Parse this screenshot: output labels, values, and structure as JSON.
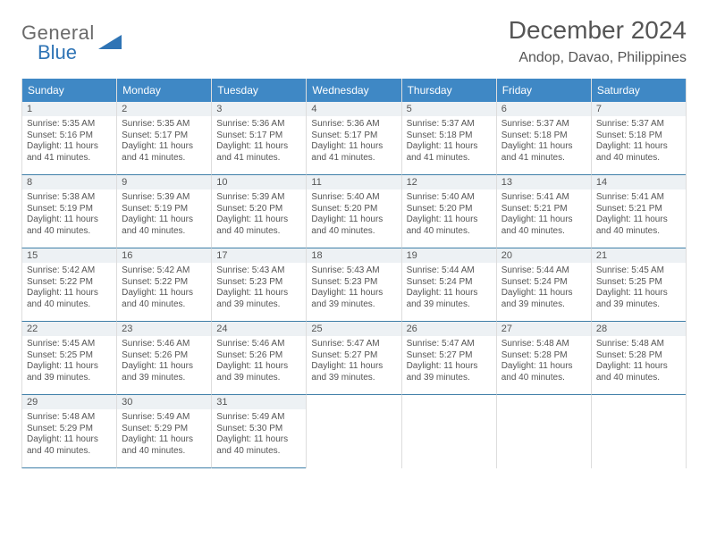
{
  "logo": {
    "general": "General",
    "blue": "Blue"
  },
  "header": {
    "title": "December 2024",
    "location": "Andop, Davao, Philippines"
  },
  "style": {
    "header_bg": "#3f88c5",
    "header_fg": "#ffffff",
    "daynum_bg": "#edf1f4",
    "row_divider": "#3f7fa8",
    "cell_border": "#dddddd",
    "logo_gray": "#6a6a6a",
    "logo_blue": "#2f74b5",
    "text_color": "#555555"
  },
  "weekdays": [
    "Sunday",
    "Monday",
    "Tuesday",
    "Wednesday",
    "Thursday",
    "Friday",
    "Saturday"
  ],
  "days": [
    {
      "n": "1",
      "sr": "Sunrise: 5:35 AM",
      "ss": "Sunset: 5:16 PM",
      "d1": "Daylight: 11 hours",
      "d2": "and 41 minutes."
    },
    {
      "n": "2",
      "sr": "Sunrise: 5:35 AM",
      "ss": "Sunset: 5:17 PM",
      "d1": "Daylight: 11 hours",
      "d2": "and 41 minutes."
    },
    {
      "n": "3",
      "sr": "Sunrise: 5:36 AM",
      "ss": "Sunset: 5:17 PM",
      "d1": "Daylight: 11 hours",
      "d2": "and 41 minutes."
    },
    {
      "n": "4",
      "sr": "Sunrise: 5:36 AM",
      "ss": "Sunset: 5:17 PM",
      "d1": "Daylight: 11 hours",
      "d2": "and 41 minutes."
    },
    {
      "n": "5",
      "sr": "Sunrise: 5:37 AM",
      "ss": "Sunset: 5:18 PM",
      "d1": "Daylight: 11 hours",
      "d2": "and 41 minutes."
    },
    {
      "n": "6",
      "sr": "Sunrise: 5:37 AM",
      "ss": "Sunset: 5:18 PM",
      "d1": "Daylight: 11 hours",
      "d2": "and 41 minutes."
    },
    {
      "n": "7",
      "sr": "Sunrise: 5:37 AM",
      "ss": "Sunset: 5:18 PM",
      "d1": "Daylight: 11 hours",
      "d2": "and 40 minutes."
    },
    {
      "n": "8",
      "sr": "Sunrise: 5:38 AM",
      "ss": "Sunset: 5:19 PM",
      "d1": "Daylight: 11 hours",
      "d2": "and 40 minutes."
    },
    {
      "n": "9",
      "sr": "Sunrise: 5:39 AM",
      "ss": "Sunset: 5:19 PM",
      "d1": "Daylight: 11 hours",
      "d2": "and 40 minutes."
    },
    {
      "n": "10",
      "sr": "Sunrise: 5:39 AM",
      "ss": "Sunset: 5:20 PM",
      "d1": "Daylight: 11 hours",
      "d2": "and 40 minutes."
    },
    {
      "n": "11",
      "sr": "Sunrise: 5:40 AM",
      "ss": "Sunset: 5:20 PM",
      "d1": "Daylight: 11 hours",
      "d2": "and 40 minutes."
    },
    {
      "n": "12",
      "sr": "Sunrise: 5:40 AM",
      "ss": "Sunset: 5:20 PM",
      "d1": "Daylight: 11 hours",
      "d2": "and 40 minutes."
    },
    {
      "n": "13",
      "sr": "Sunrise: 5:41 AM",
      "ss": "Sunset: 5:21 PM",
      "d1": "Daylight: 11 hours",
      "d2": "and 40 minutes."
    },
    {
      "n": "14",
      "sr": "Sunrise: 5:41 AM",
      "ss": "Sunset: 5:21 PM",
      "d1": "Daylight: 11 hours",
      "d2": "and 40 minutes."
    },
    {
      "n": "15",
      "sr": "Sunrise: 5:42 AM",
      "ss": "Sunset: 5:22 PM",
      "d1": "Daylight: 11 hours",
      "d2": "and 40 minutes."
    },
    {
      "n": "16",
      "sr": "Sunrise: 5:42 AM",
      "ss": "Sunset: 5:22 PM",
      "d1": "Daylight: 11 hours",
      "d2": "and 40 minutes."
    },
    {
      "n": "17",
      "sr": "Sunrise: 5:43 AM",
      "ss": "Sunset: 5:23 PM",
      "d1": "Daylight: 11 hours",
      "d2": "and 39 minutes."
    },
    {
      "n": "18",
      "sr": "Sunrise: 5:43 AM",
      "ss": "Sunset: 5:23 PM",
      "d1": "Daylight: 11 hours",
      "d2": "and 39 minutes."
    },
    {
      "n": "19",
      "sr": "Sunrise: 5:44 AM",
      "ss": "Sunset: 5:24 PM",
      "d1": "Daylight: 11 hours",
      "d2": "and 39 minutes."
    },
    {
      "n": "20",
      "sr": "Sunrise: 5:44 AM",
      "ss": "Sunset: 5:24 PM",
      "d1": "Daylight: 11 hours",
      "d2": "and 39 minutes."
    },
    {
      "n": "21",
      "sr": "Sunrise: 5:45 AM",
      "ss": "Sunset: 5:25 PM",
      "d1": "Daylight: 11 hours",
      "d2": "and 39 minutes."
    },
    {
      "n": "22",
      "sr": "Sunrise: 5:45 AM",
      "ss": "Sunset: 5:25 PM",
      "d1": "Daylight: 11 hours",
      "d2": "and 39 minutes."
    },
    {
      "n": "23",
      "sr": "Sunrise: 5:46 AM",
      "ss": "Sunset: 5:26 PM",
      "d1": "Daylight: 11 hours",
      "d2": "and 39 minutes."
    },
    {
      "n": "24",
      "sr": "Sunrise: 5:46 AM",
      "ss": "Sunset: 5:26 PM",
      "d1": "Daylight: 11 hours",
      "d2": "and 39 minutes."
    },
    {
      "n": "25",
      "sr": "Sunrise: 5:47 AM",
      "ss": "Sunset: 5:27 PM",
      "d1": "Daylight: 11 hours",
      "d2": "and 39 minutes."
    },
    {
      "n": "26",
      "sr": "Sunrise: 5:47 AM",
      "ss": "Sunset: 5:27 PM",
      "d1": "Daylight: 11 hours",
      "d2": "and 39 minutes."
    },
    {
      "n": "27",
      "sr": "Sunrise: 5:48 AM",
      "ss": "Sunset: 5:28 PM",
      "d1": "Daylight: 11 hours",
      "d2": "and 40 minutes."
    },
    {
      "n": "28",
      "sr": "Sunrise: 5:48 AM",
      "ss": "Sunset: 5:28 PM",
      "d1": "Daylight: 11 hours",
      "d2": "and 40 minutes."
    },
    {
      "n": "29",
      "sr": "Sunrise: 5:48 AM",
      "ss": "Sunset: 5:29 PM",
      "d1": "Daylight: 11 hours",
      "d2": "and 40 minutes."
    },
    {
      "n": "30",
      "sr": "Sunrise: 5:49 AM",
      "ss": "Sunset: 5:29 PM",
      "d1": "Daylight: 11 hours",
      "d2": "and 40 minutes."
    },
    {
      "n": "31",
      "sr": "Sunrise: 5:49 AM",
      "ss": "Sunset: 5:30 PM",
      "d1": "Daylight: 11 hours",
      "d2": "and 40 minutes."
    }
  ]
}
